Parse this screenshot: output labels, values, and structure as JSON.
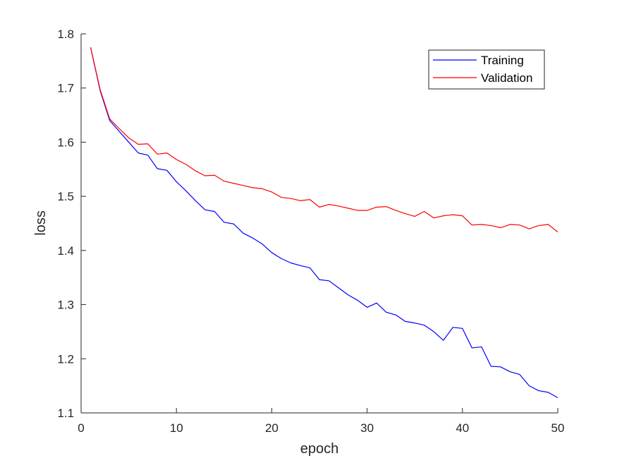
{
  "chart_data": {
    "type": "line",
    "title": "",
    "xlabel": "epoch",
    "ylabel": "loss",
    "xlim": [
      0,
      50
    ],
    "ylim": [
      1.1,
      1.8
    ],
    "xticks": [
      0,
      10,
      20,
      30,
      40,
      50
    ],
    "yticks": [
      1.1,
      1.2,
      1.3,
      1.4,
      1.5,
      1.6,
      1.7,
      1.8
    ],
    "ytick_labels": [
      "1.1",
      "1.2",
      "1.3",
      "1.4",
      "1.5",
      "1.6",
      "1.7",
      "1.8"
    ],
    "grid": false,
    "legend_position": "top-right",
    "x": [
      1,
      2,
      3,
      4,
      5,
      6,
      7,
      8,
      9,
      10,
      11,
      12,
      13,
      14,
      15,
      16,
      17,
      18,
      19,
      20,
      21,
      22,
      23,
      24,
      25,
      26,
      27,
      28,
      29,
      30,
      31,
      32,
      33,
      34,
      35,
      36,
      37,
      38,
      39,
      40,
      41,
      42,
      43,
      44,
      45,
      46,
      47,
      48,
      49,
      50
    ],
    "series": [
      {
        "name": "Training",
        "color": "#0000ff",
        "values": [
          1.775,
          1.695,
          1.64,
          1.62,
          1.6,
          1.58,
          1.576,
          1.551,
          1.548,
          1.527,
          1.51,
          1.492,
          1.475,
          1.472,
          1.452,
          1.449,
          1.432,
          1.423,
          1.412,
          1.396,
          1.385,
          1.377,
          1.372,
          1.368,
          1.346,
          1.344,
          1.331,
          1.318,
          1.308,
          1.295,
          1.303,
          1.286,
          1.281,
          1.269,
          1.266,
          1.262,
          1.25,
          1.234,
          1.258,
          1.256,
          1.22,
          1.222,
          1.186,
          1.185,
          1.176,
          1.171,
          1.15,
          1.141,
          1.138,
          1.128
        ]
      },
      {
        "name": "Validation",
        "color": "#ff0000",
        "values": [
          1.775,
          1.697,
          1.643,
          1.625,
          1.608,
          1.596,
          1.597,
          1.578,
          1.58,
          1.568,
          1.559,
          1.547,
          1.538,
          1.539,
          1.528,
          1.524,
          1.52,
          1.516,
          1.514,
          1.508,
          1.498,
          1.496,
          1.492,
          1.494,
          1.48,
          1.485,
          1.482,
          1.478,
          1.474,
          1.474,
          1.48,
          1.481,
          1.474,
          1.468,
          1.463,
          1.472,
          1.46,
          1.464,
          1.466,
          1.464,
          1.447,
          1.448,
          1.446,
          1.442,
          1.448,
          1.447,
          1.44,
          1.446,
          1.448,
          1.434
        ]
      }
    ]
  }
}
